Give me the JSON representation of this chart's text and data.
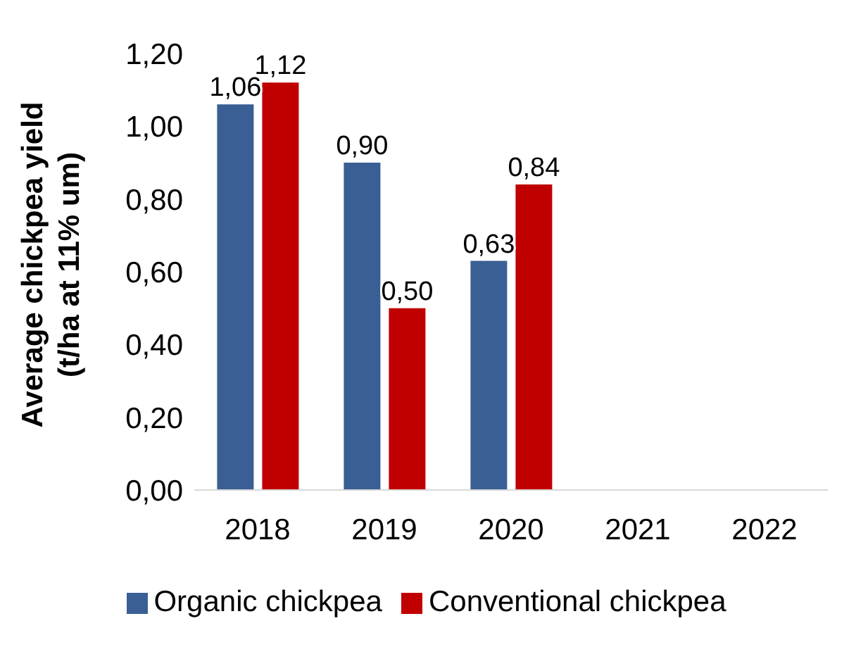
{
  "chart_data": {
    "type": "bar",
    "ylabel": "Average chickpea yield\n(t/ha at 11% um)",
    "categories": [
      "2018",
      "2019",
      "2020",
      "2021",
      "2022"
    ],
    "series": [
      {
        "name": "Organic chickpea",
        "color": "#3a5f94",
        "values": [
          1.06,
          0.9,
          0.63,
          null,
          null
        ],
        "value_labels": [
          "1,06",
          "0,90",
          "0,63",
          null,
          null
        ]
      },
      {
        "name": "Conventional chickpea",
        "color": "#c00000",
        "values": [
          1.12,
          0.5,
          0.84,
          null,
          null
        ],
        "value_labels": [
          "1,12",
          "0,50",
          "0,84",
          null,
          null
        ]
      }
    ],
    "ylim": [
      0,
      1.2
    ],
    "yticks": [
      {
        "value": 0,
        "label": "0,00"
      },
      {
        "value": 0.2,
        "label": "0,20"
      },
      {
        "value": 0.4,
        "label": "0,40"
      },
      {
        "value": 0.6,
        "label": "0,60"
      },
      {
        "value": 0.8,
        "label": "0,80"
      },
      {
        "value": 1.0,
        "label": "1,00"
      },
      {
        "value": 1.2,
        "label": "1,20"
      }
    ],
    "grid": false,
    "legend": "bottom"
  }
}
